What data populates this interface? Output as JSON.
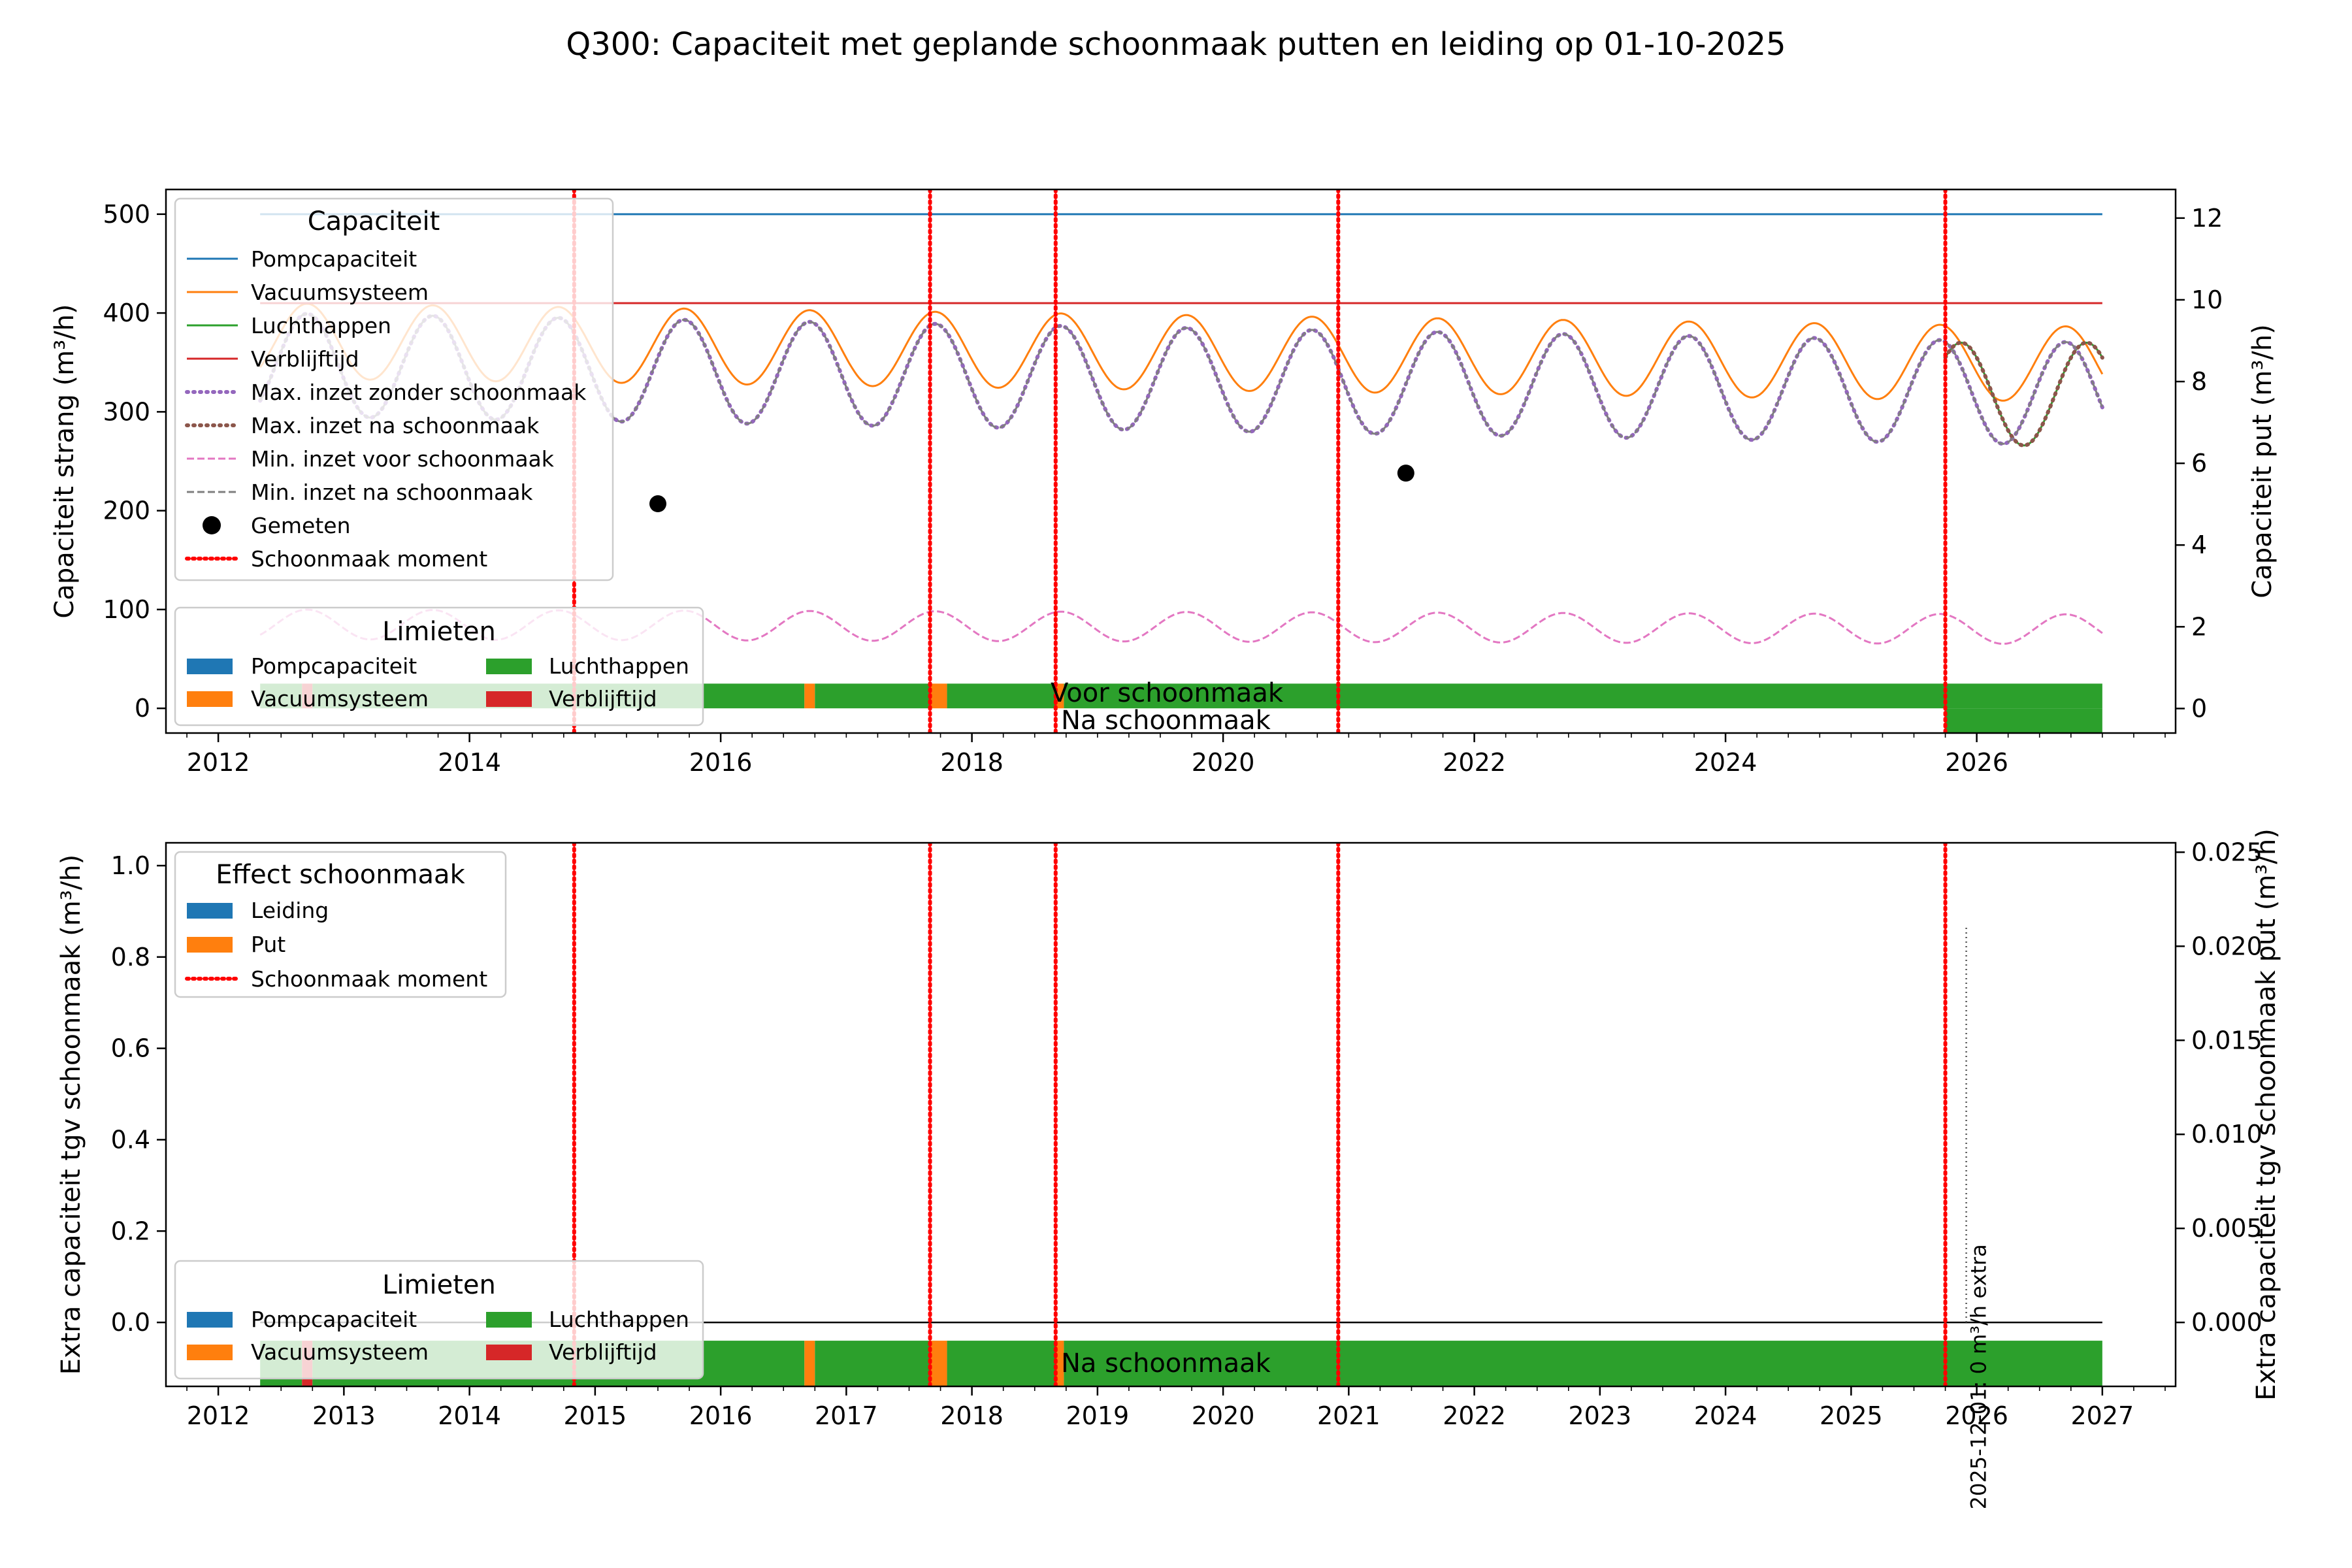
{
  "figure_title": "Q300: Capaciteit met geplande schoonmaak putten en leiding op 01-10-2025",
  "colors": {
    "pomp": "#1f77b4",
    "vacuum": "#ff7f0e",
    "lucht": "#2ca02c",
    "verblijf": "#d62728",
    "max_zonder": "#9467bd",
    "max_na": "#8c564b",
    "min_voor": "#e377c2",
    "min_na": "#7f7f7f",
    "clean": "#ff0000",
    "measured": "#000000"
  },
  "chart_data": [
    {
      "type": "line",
      "name": "top",
      "title": "",
      "ylabel": "Capaciteit strang (m³/h)",
      "ylabel_right": "Capaciteit put (m³/h)",
      "x_type": "date",
      "xlim": [
        "2011-08-01",
        "2027-08-01"
      ],
      "ylim": [
        -25,
        525
      ],
      "ylim_right": [
        -0.6,
        12.7
      ],
      "x_ticks": [
        "2012",
        "2014",
        "2016",
        "2018",
        "2020",
        "2022",
        "2024",
        "2026"
      ],
      "y_ticks": [
        0,
        100,
        200,
        300,
        400,
        500
      ],
      "y_ticks_right": [
        0,
        2,
        4,
        6,
        8,
        10,
        12
      ],
      "grid": false,
      "legend_placement": "upper-left",
      "series": [
        {
          "name": "Pompcapaciteit",
          "kind": "constant",
          "value": 500,
          "x_range": [
            "2012-05-01",
            "2027-01-01"
          ]
        },
        {
          "name": "Vacuumsysteem",
          "kind": "seasonal",
          "x_range": [
            "2012-05-01",
            "2027-01-01"
          ],
          "mean_start": 372,
          "mean_end": 348,
          "amplitude": 38,
          "peak_month": 9.5
        },
        {
          "name": "Luchthappen",
          "kind": "seasonal",
          "x_range": [
            "2025-10-01",
            "2027-01-01"
          ],
          "mean_start": 318,
          "mean_end": 318,
          "amplitude": 52,
          "peak_month": 11.5
        },
        {
          "name": "Verblijftijd",
          "kind": "constant",
          "value": 410,
          "x_range": [
            "2012-05-01",
            "2027-01-01"
          ]
        },
        {
          "name": "Max. inzet zonder schoonmaak",
          "kind": "seasonal",
          "x_range": [
            "2012-05-01",
            "2027-01-01"
          ],
          "mean_start": 348,
          "mean_end": 318,
          "amplitude": 52,
          "peak_month": 9.5
        },
        {
          "name": "Max. inzet na schoonmaak",
          "kind": "seasonal",
          "x_range": [
            "2025-10-01",
            "2027-01-01"
          ],
          "mean_start": 318,
          "mean_end": 318,
          "amplitude": 52,
          "peak_month": 11.5
        },
        {
          "name": "Min. inzet voor schoonmaak",
          "kind": "seasonal",
          "x_range": [
            "2012-05-01",
            "2027-01-01"
          ],
          "mean_start": 85,
          "mean_end": 80,
          "amplitude": 15,
          "peak_month": 9.5
        },
        {
          "name": "Min. inzet na schoonmaak",
          "kind": "seasonal",
          "x_range": [
            "2012-05-01",
            "2027-01-01"
          ],
          "mean_start": 348,
          "mean_end": 318,
          "amplitude": 52,
          "peak_month": 9.5
        },
        {
          "name": "Gemeten",
          "kind": "points",
          "points": [
            {
              "x": "2015-07-01",
              "y": 207
            },
            {
              "x": "2021-06-15",
              "y": 238
            }
          ]
        },
        {
          "name": "Schoonmaak moment",
          "kind": "vlines",
          "dates": [
            "2014-11-01",
            "2017-09-01",
            "2018-09-01",
            "2020-12-01",
            "2025-10-01"
          ]
        }
      ],
      "limit_bands": [
        {
          "label": "Voor schoonmaak",
          "y_range": [
            0,
            25
          ],
          "segments": [
            {
              "from": "2012-05-01",
              "to": "2012-09-01",
              "limit": "Luchthappen"
            },
            {
              "from": "2012-09-01",
              "to": "2012-10-01",
              "limit": "Verblijftijd"
            },
            {
              "from": "2012-10-01",
              "to": "2016-09-01",
              "limit": "Luchthappen"
            },
            {
              "from": "2016-09-01",
              "to": "2016-10-01",
              "limit": "Vacuumsysteem"
            },
            {
              "from": "2016-10-01",
              "to": "2017-09-01",
              "limit": "Luchthappen"
            },
            {
              "from": "2017-09-01",
              "to": "2017-10-20",
              "limit": "Vacuumsysteem"
            },
            {
              "from": "2017-10-20",
              "to": "2018-09-01",
              "limit": "Luchthappen"
            },
            {
              "from": "2018-09-01",
              "to": "2018-09-25",
              "limit": "Vacuumsysteem"
            },
            {
              "from": "2018-09-25",
              "to": "2027-01-01",
              "limit": "Luchthappen"
            }
          ]
        },
        {
          "label": "Na schoonmaak",
          "y_range": [
            -25,
            0
          ],
          "segments": [
            {
              "from": "2025-10-01",
              "to": "2027-01-01",
              "limit": "Luchthappen"
            }
          ]
        }
      ]
    },
    {
      "type": "bar",
      "name": "bottom",
      "title": "",
      "ylabel": "Extra capaciteit tgv schoonmaak (m³/h)",
      "ylabel_right": "Extra capaciteit tgv schoonmaak put (m³/h)",
      "x_type": "date",
      "xlim": [
        "2011-08-01",
        "2027-08-01"
      ],
      "ylim": [
        -0.14,
        1.05
      ],
      "ylim_right": [
        -0.0034,
        0.0255
      ],
      "x_ticks": [
        "2012",
        "2013",
        "2014",
        "2015",
        "2016",
        "2017",
        "2018",
        "2019",
        "2020",
        "2021",
        "2022",
        "2023",
        "2024",
        "2025",
        "2026",
        "2027"
      ],
      "y_ticks": [
        0.0,
        0.2,
        0.4,
        0.6,
        0.8,
        1.0
      ],
      "y_ticks_right": [
        0.0,
        0.005,
        0.01,
        0.015,
        0.02,
        0.025
      ],
      "grid": false,
      "legend_placement": "upper-left",
      "series": [
        {
          "name": "Leiding",
          "values": []
        },
        {
          "name": "Put",
          "values": []
        },
        {
          "name": "Schoonmaak moment",
          "kind": "vlines",
          "dates": [
            "2014-11-01",
            "2017-09-01",
            "2018-09-01",
            "2020-12-01",
            "2025-10-01"
          ]
        }
      ],
      "zero_line": 0,
      "marker_line": {
        "date": "2025-12-01",
        "label": "2025-12-01: 0 m³/h extra"
      },
      "limit_bands": [
        {
          "label": "Na schoonmaak",
          "y_range": [
            -0.14,
            -0.04
          ],
          "segments": [
            {
              "from": "2012-05-01",
              "to": "2012-09-01",
              "limit": "Luchthappen"
            },
            {
              "from": "2012-09-01",
              "to": "2012-10-01",
              "limit": "Verblijftijd"
            },
            {
              "from": "2012-10-01",
              "to": "2016-09-01",
              "limit": "Luchthappen"
            },
            {
              "from": "2016-09-01",
              "to": "2016-10-01",
              "limit": "Vacuumsysteem"
            },
            {
              "from": "2016-10-01",
              "to": "2017-09-01",
              "limit": "Luchthappen"
            },
            {
              "from": "2017-09-01",
              "to": "2017-10-20",
              "limit": "Vacuumsysteem"
            },
            {
              "from": "2017-10-20",
              "to": "2018-09-01",
              "limit": "Luchthappen"
            },
            {
              "from": "2018-09-01",
              "to": "2018-09-25",
              "limit": "Vacuumsysteem"
            },
            {
              "from": "2018-09-25",
              "to": "2027-01-01",
              "limit": "Luchthappen"
            }
          ]
        }
      ]
    }
  ],
  "legend_capaciteit": {
    "title": "Capaciteit",
    "items": [
      "Pompcapaciteit",
      "Vacuumsysteem",
      "Luchthappen",
      "Verblijftijd",
      "Max. inzet zonder schoonmaak",
      "Max. inzet na schoonmaak",
      "Min. inzet voor schoonmaak",
      "Min. inzet na schoonmaak",
      "Gemeten",
      "Schoonmaak moment"
    ]
  },
  "legend_limieten": {
    "title": "Limieten",
    "items": [
      "Pompcapaciteit",
      "Vacuumsysteem",
      "Luchthappen",
      "Verblijftijd"
    ]
  },
  "legend_effect": {
    "title": "Effect schoonmaak",
    "items": [
      "Leiding",
      "Put",
      "Schoonmaak moment"
    ]
  }
}
